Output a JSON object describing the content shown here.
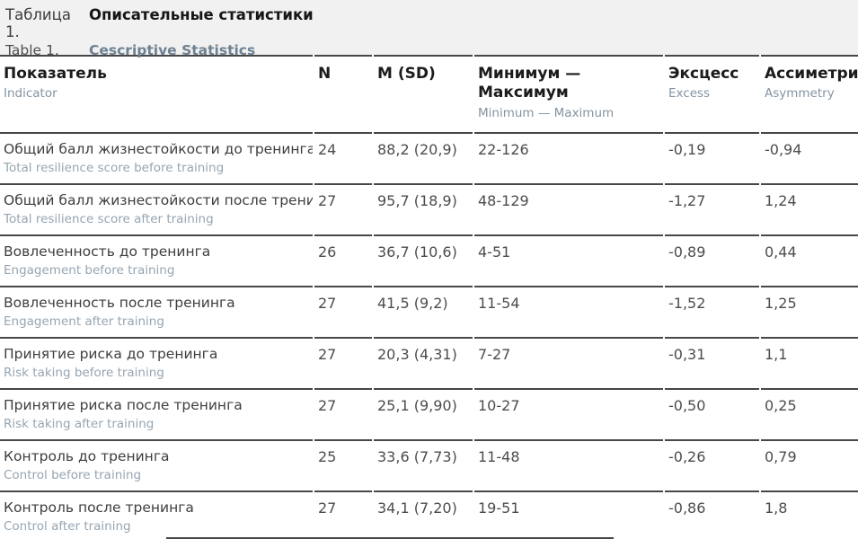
{
  "caption": {
    "label_ru": "Таблица 1.",
    "title_ru": "Описательные статистики",
    "label_en": "Table 1.",
    "title_en": "Cescriptive Statistics"
  },
  "colors": {
    "caption_band_bg": "#f1f1f1",
    "border": "#474747",
    "primary_text": "#3e3e3e",
    "secondary_text": "#96a5b1",
    "caption_en_accent": "#6e8191"
  },
  "table": {
    "columns": [
      {
        "ru": "Показатель",
        "en": "Indicator"
      },
      {
        "ru": "N",
        "en": ""
      },
      {
        "ru": "M (SD)",
        "en": ""
      },
      {
        "ru": "Минимум — Максимум",
        "en": "Minimum — Maximum"
      },
      {
        "ru": "Эксцесс",
        "en": "Excess"
      },
      {
        "ru": "Ассиметрия",
        "en": "Asymmetry"
      }
    ],
    "rows": [
      {
        "indicator_ru": "Общий балл жизнестойкости до тренинга",
        "indicator_en": "Total resilience score before training",
        "n": "24",
        "m_sd": "88,2 (20,9)",
        "min_max": "22-126",
        "excess": "-0,19",
        "asymmetry": "-0,94"
      },
      {
        "indicator_ru": "Общий балл жизнестойкости после тренинга",
        "indicator_en": "Total resilience score after training",
        "n": "27",
        "m_sd": "95,7 (18,9)",
        "min_max": "48-129",
        "excess": "-1,27",
        "asymmetry": "1,24"
      },
      {
        "indicator_ru": "Вовлеченность до тренинга",
        "indicator_en": "Engagement before training",
        "n": "26",
        "m_sd": "36,7 (10,6)",
        "min_max": "4-51",
        "excess": "-0,89",
        "asymmetry": "0,44"
      },
      {
        "indicator_ru": "Вовлеченность после тренинга",
        "indicator_en": "Engagement after training",
        "n": "27",
        "m_sd": "41,5 (9,2)",
        "min_max": "11-54",
        "excess": "-1,52",
        "asymmetry": "1,25"
      },
      {
        "indicator_ru": "Принятие риска до тренинга",
        "indicator_en": "Risk taking before training",
        "n": "27",
        "m_sd": "20,3 (4,31)",
        "min_max": "7-27",
        "excess": "-0,31",
        "asymmetry": "1,1"
      },
      {
        "indicator_ru": "Принятие риска после тренинга",
        "indicator_en": "Risk taking after training",
        "n": "27",
        "m_sd": "25,1 (9,90)",
        "min_max": "10-27",
        "excess": "-0,50",
        "asymmetry": "0,25"
      },
      {
        "indicator_ru": "Контроль до тренинга",
        "indicator_en": "Control before training",
        "n": "25",
        "m_sd": "33,6 (7,73)",
        "min_max": "11-48",
        "excess": "-0,26",
        "asymmetry": "0,79"
      },
      {
        "indicator_ru": "Контроль после тренинга",
        "indicator_en": "Control after training",
        "n": "27",
        "m_sd": "34,1 (7,20)",
        "min_max": "19-51",
        "excess": "-0,86",
        "asymmetry": "1,8"
      }
    ]
  }
}
